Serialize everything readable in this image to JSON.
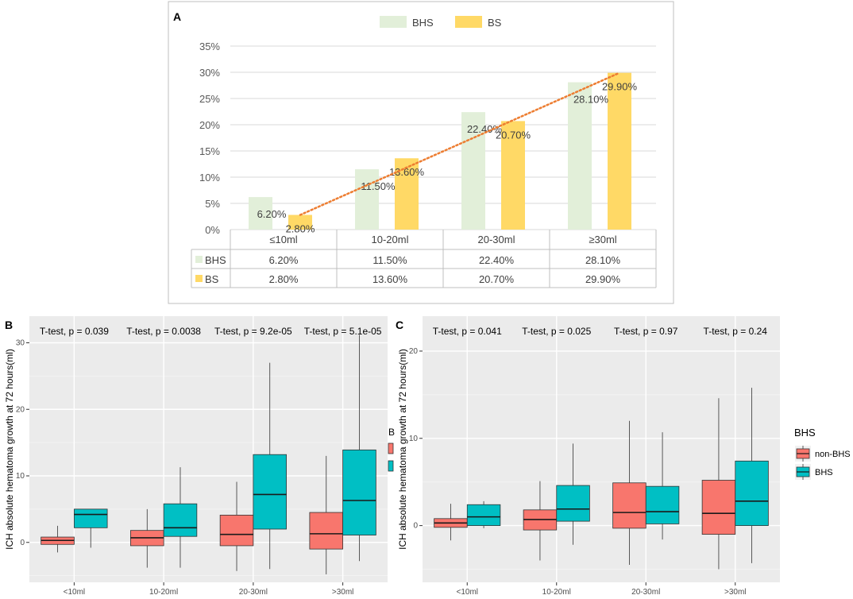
{
  "chart_data": [
    {
      "panel": "A",
      "type": "bar",
      "categories": [
        "≤10ml",
        "10-20ml",
        "20-30ml",
        "≥30ml"
      ],
      "series": [
        {
          "name": "BHS",
          "values": [
            6.2,
            11.5,
            22.4,
            28.1
          ],
          "labels": [
            "6.20%",
            "11.50%",
            "22.40%",
            "28.10%"
          ],
          "color": "#e2efd9"
        },
        {
          "name": "BS",
          "values": [
            2.8,
            13.6,
            20.7,
            29.9
          ],
          "labels": [
            "2.80%",
            "13.60%",
            "20.70%",
            "29.90%"
          ],
          "color": "#ffd966"
        }
      ],
      "trendline": {
        "from": 2.8,
        "to": 29.9,
        "color": "#ed7d31",
        "style": "dotted"
      },
      "ylim": [
        0,
        35
      ],
      "yticks": [
        "0%",
        "5%",
        "10%",
        "15%",
        "20%",
        "25%",
        "30%",
        "35%"
      ],
      "legend": "top",
      "data_table": {
        "rows": [
          {
            "name": "BHS",
            "cells": [
              "6.20%",
              "11.50%",
              "22.40%",
              "28.10%"
            ]
          },
          {
            "name": "BS",
            "cells": [
              "2.80%",
              "13.60%",
              "20.70%",
              "29.90%"
            ]
          }
        ]
      }
    },
    {
      "panel": "B",
      "type": "box",
      "categories": [
        "<10ml",
        "10-20ml",
        "20-30ml",
        ">30ml"
      ],
      "ylabel": "ICH absolute hematoma growth at 72 hours(ml)",
      "ylim": [
        -6,
        34
      ],
      "yticks": [
        0,
        10,
        20,
        30
      ],
      "annotations": [
        "T-test, p = 0.039",
        "T-test, p = 0.0038",
        "T-test, p = 9.2e-05",
        "T-test, p = 5.1e-05"
      ],
      "legend_fragment": {
        "title": "B",
        "colors": [
          "#f8766d",
          "#00bfc4"
        ]
      },
      "series": [
        {
          "name": "non-BHS",
          "color": "#f8766d",
          "boxes": [
            {
              "min": -1.5,
              "q1": -0.3,
              "median": 0.3,
              "q3": 0.8,
              "max": 2.5
            },
            {
              "min": -3.8,
              "q1": -0.5,
              "median": 0.7,
              "q3": 1.8,
              "max": 5.0
            },
            {
              "min": -4.3,
              "q1": -0.5,
              "median": 1.2,
              "q3": 4.1,
              "max": 9.1
            },
            {
              "min": -4.8,
              "q1": -1.0,
              "median": 1.3,
              "q3": 4.5,
              "max": 13.0
            }
          ]
        },
        {
          "name": "BHS",
          "color": "#00bfc4",
          "boxes": [
            {
              "min": -0.8,
              "q1": 2.2,
              "median": 4.2,
              "q3": 5.0,
              "max": 5.0
            },
            {
              "min": -3.8,
              "q1": 0.9,
              "median": 2.2,
              "q3": 5.8,
              "max": 11.3
            },
            {
              "min": -4.0,
              "q1": 2.0,
              "median": 7.2,
              "q3": 13.2,
              "max": 27.0
            },
            {
              "min": -2.8,
              "q1": 1.1,
              "median": 6.3,
              "q3": 13.9,
              "max": 31.2
            }
          ]
        }
      ]
    },
    {
      "panel": "C",
      "type": "box",
      "categories": [
        "<10ml",
        "10-20ml",
        "20-30ml",
        ">30ml"
      ],
      "ylabel": "ICH absolute hematoma growth at 72 hours(ml)",
      "ylim": [
        -6.5,
        24
      ],
      "yticks": [
        0,
        10,
        20
      ],
      "annotations": [
        "T-test, p = 0.041",
        "T-test, p = 0.025",
        "T-test, p = 0.97",
        "T-test, p = 0.24"
      ],
      "legend": {
        "title": "BHS",
        "items": [
          "non-BHS",
          "BHS"
        ]
      },
      "series": [
        {
          "name": "non-BHS",
          "color": "#f8766d",
          "boxes": [
            {
              "min": -1.7,
              "q1": -0.2,
              "median": 0.3,
              "q3": 0.8,
              "max": 2.5
            },
            {
              "min": -4.0,
              "q1": -0.5,
              "median": 0.7,
              "q3": 1.8,
              "max": 5.1
            },
            {
              "min": -4.5,
              "q1": -0.3,
              "median": 1.5,
              "q3": 4.9,
              "max": 12.0
            },
            {
              "min": -5.0,
              "q1": -1.0,
              "median": 1.4,
              "q3": 5.2,
              "max": 14.6
            }
          ]
        },
        {
          "name": "BHS",
          "color": "#00bfc4",
          "boxes": [
            {
              "min": -0.3,
              "q1": 0.0,
              "median": 1.0,
              "q3": 2.4,
              "max": 2.8
            },
            {
              "min": -2.2,
              "q1": 0.5,
              "median": 1.9,
              "q3": 4.6,
              "max": 9.4
            },
            {
              "min": -1.6,
              "q1": 0.2,
              "median": 1.6,
              "q3": 4.5,
              "max": 10.7
            },
            {
              "min": -4.3,
              "q1": 0.0,
              "median": 2.8,
              "q3": 7.4,
              "max": 15.8
            }
          ]
        }
      ]
    }
  ]
}
